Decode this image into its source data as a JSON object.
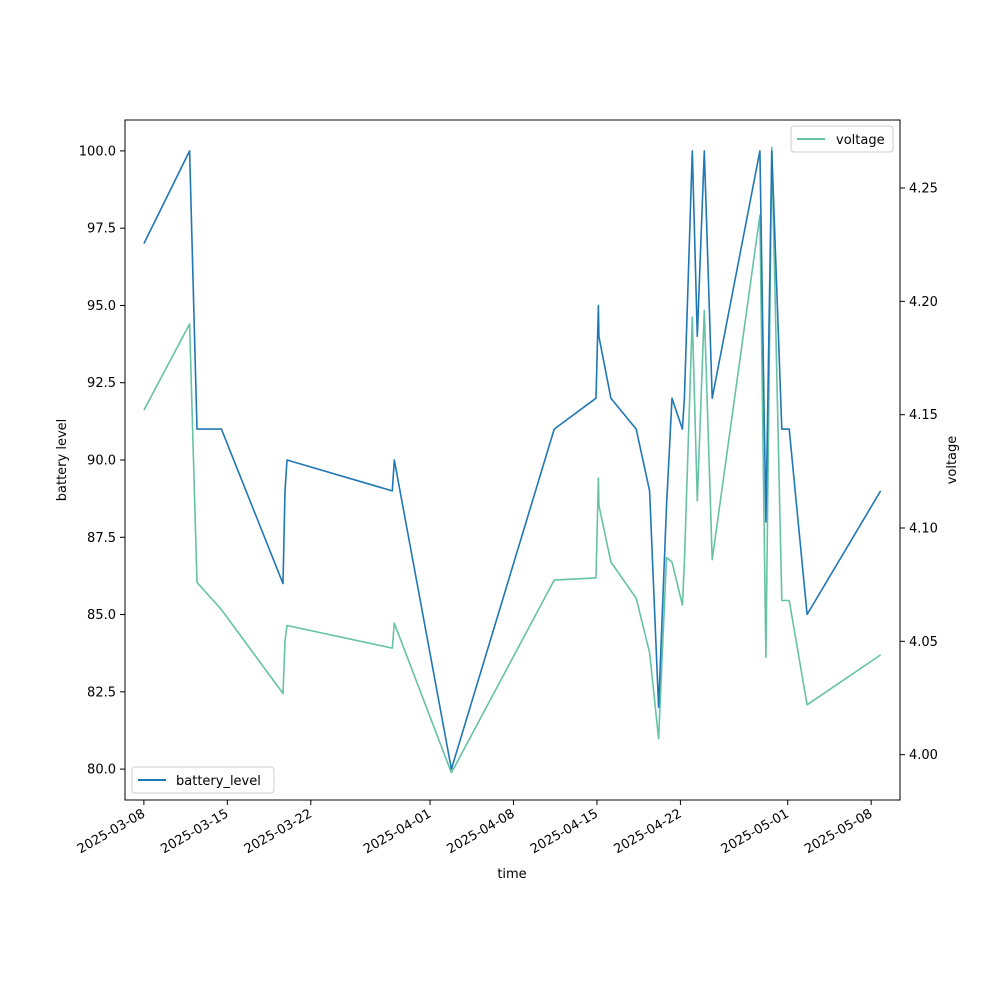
{
  "chart_data": {
    "type": "line",
    "xlabel": "time",
    "ylabel": "battery level",
    "y2label": "voltage",
    "xlim": [
      "2025-03-06T10:00",
      "2025-05-10T10:00"
    ],
    "ylim": [
      79.0,
      101.0
    ],
    "y2lim": [
      3.98,
      4.28
    ],
    "xticks": [
      "2025-03-08",
      "2025-03-15",
      "2025-03-22",
      "2025-04-01",
      "2025-04-08",
      "2025-04-15",
      "2025-04-22",
      "2025-05-01",
      "2025-05-08"
    ],
    "yticks": [
      "80.0",
      "82.5",
      "85.0",
      "87.5",
      "90.0",
      "92.5",
      "95.0",
      "97.5",
      "100.0"
    ],
    "y2ticks": [
      "4.00",
      "4.05",
      "4.10",
      "4.15",
      "4.20",
      "4.25"
    ],
    "grid": false,
    "series": [
      {
        "name": "battery_level",
        "axis": "left",
        "color": "#1f77b4",
        "legend": "lower-left",
        "x": [
          "2025-03-08T00:00",
          "2025-03-11T20:00",
          "2025-03-12T11:00",
          "2025-03-14T12:00",
          "2025-03-19T16:00",
          "2025-03-19T20:00",
          "2025-03-20T00:00",
          "2025-03-28T20:00",
          "2025-03-29T00:00",
          "2025-04-02T19:00",
          "2025-04-11T10:00",
          "2025-04-14T22:00",
          "2025-04-15T03:00",
          "2025-04-15T04:00",
          "2025-04-16T04:00",
          "2025-04-18T07:00",
          "2025-04-19T10:00",
          "2025-04-20T04:00",
          "2025-04-20T20:00",
          "2025-04-21T07:00",
          "2025-04-22T04:00",
          "2025-04-22T08:00",
          "2025-04-23T00:00",
          "2025-04-23T10:00",
          "2025-04-24T00:00",
          "2025-04-24T16:00",
          "2025-04-28T16:00",
          "2025-04-29T04:00",
          "2025-04-29T16:00",
          "2025-04-30T12:00",
          "2025-05-01T03:00",
          "2025-05-02T15:00",
          "2025-05-08T19:00"
        ],
        "values": [
          97.0,
          100.0,
          91.0,
          91.0,
          86.0,
          89.0,
          90.0,
          89.0,
          90.0,
          80.0,
          91.0,
          92.0,
          95.0,
          94.0,
          92.0,
          91.0,
          89.0,
          82.0,
          88.5,
          92.0,
          91.0,
          92.0,
          100.0,
          94.0,
          100.0,
          92.0,
          100.0,
          88.0,
          100.0,
          91.0,
          91.0,
          85.0,
          89.0
        ]
      },
      {
        "name": "voltage",
        "axis": "right",
        "color": "#66c2a5",
        "legend": "upper-right",
        "x": [
          "2025-03-08T00:00",
          "2025-03-11T20:00",
          "2025-03-12T11:00",
          "2025-03-14T12:00",
          "2025-03-19T16:00",
          "2025-03-19T20:00",
          "2025-03-20T00:00",
          "2025-03-28T20:00",
          "2025-03-29T00:00",
          "2025-04-02T19:00",
          "2025-04-11T10:00",
          "2025-04-14T22:00",
          "2025-04-15T03:00",
          "2025-04-15T04:00",
          "2025-04-16T04:00",
          "2025-04-18T07:00",
          "2025-04-19T10:00",
          "2025-04-20T04:00",
          "2025-04-20T20:00",
          "2025-04-21T07:00",
          "2025-04-22T04:00",
          "2025-04-22T08:00",
          "2025-04-23T00:00",
          "2025-04-23T10:00",
          "2025-04-24T00:00",
          "2025-04-24T16:00",
          "2025-04-28T16:00",
          "2025-04-29T04:00",
          "2025-04-29T16:00",
          "2025-04-30T12:00",
          "2025-05-01T03:00",
          "2025-05-02T15:00",
          "2025-05-08T19:00"
        ],
        "values": [
          4.152,
          4.19,
          4.076,
          4.064,
          4.027,
          4.05,
          4.057,
          4.047,
          4.058,
          3.992,
          4.077,
          4.078,
          4.122,
          4.11,
          4.085,
          4.069,
          4.045,
          4.007,
          4.087,
          4.085,
          4.066,
          4.085,
          4.193,
          4.112,
          4.196,
          4.086,
          4.238,
          4.043,
          4.268,
          4.068,
          4.068,
          4.022,
          4.044
        ]
      }
    ]
  }
}
